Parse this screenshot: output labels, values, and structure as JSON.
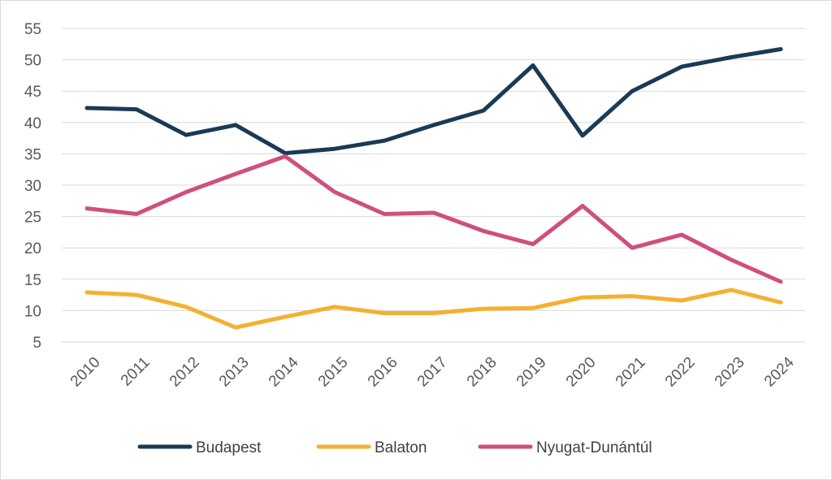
{
  "chart_data": {
    "type": "line",
    "title": "",
    "xlabel": "",
    "ylabel": "",
    "ylim": [
      5,
      55
    ],
    "yticks": [
      5,
      10,
      15,
      20,
      25,
      30,
      35,
      40,
      45,
      50,
      55
    ],
    "grid": true,
    "legend_position": "bottom",
    "categories": [
      "2010",
      "2011",
      "2012",
      "2013",
      "2014",
      "2015",
      "2016",
      "2017",
      "2018",
      "2019",
      "2020",
      "2021",
      "2022",
      "2023",
      "2024"
    ],
    "series": [
      {
        "name": "Budapest",
        "color": "#1a3a56",
        "values": [
          42.3,
          42.1,
          38.0,
          39.6,
          35.1,
          35.8,
          37.1,
          39.6,
          41.9,
          49.1,
          37.9,
          45.0,
          48.9,
          50.4,
          51.7
        ]
      },
      {
        "name": "Balaton",
        "color": "#f3b132",
        "values": [
          12.9,
          12.5,
          10.6,
          7.3,
          9.0,
          10.6,
          9.6,
          9.6,
          10.3,
          10.4,
          12.1,
          12.3,
          11.6,
          13.3,
          11.3
        ]
      },
      {
        "name": "Nyugat-Dunántúl",
        "color": "#cf4f7e",
        "values": [
          26.3,
          25.4,
          28.9,
          31.8,
          34.6,
          28.9,
          25.4,
          25.6,
          22.7,
          20.6,
          26.7,
          20.0,
          22.1,
          18.1,
          14.6
        ]
      }
    ]
  }
}
